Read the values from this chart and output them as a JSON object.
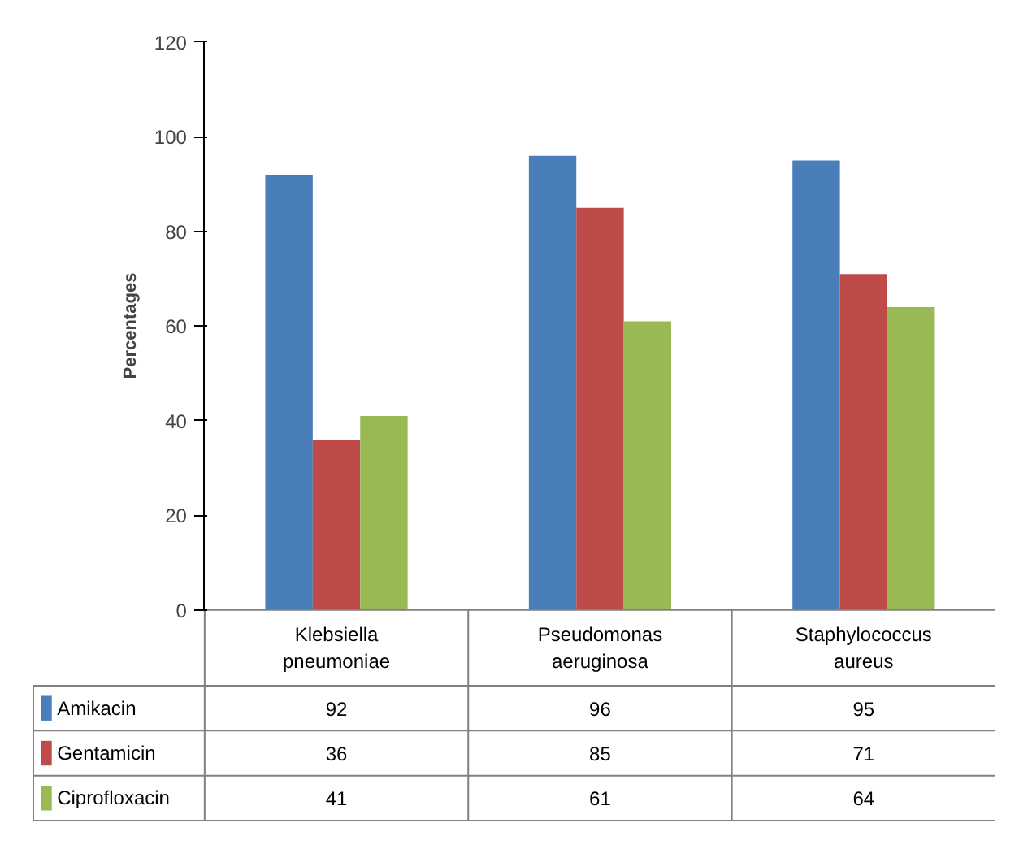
{
  "chart_data": {
    "type": "bar",
    "ylabel": "Percentages",
    "categories": [
      "Klebsiella pneumoniae",
      "Pseudomonas aeruginosa",
      "Staphylococcus aureus"
    ],
    "series": [
      {
        "name": "Amikacin",
        "color": "#4a7ebb",
        "values": [
          92,
          96,
          95
        ]
      },
      {
        "name": "Gentamicin",
        "color": "#be4b48",
        "values": [
          36,
          85,
          71
        ]
      },
      {
        "name": "Ciprofloxacin",
        "color": "#98b954",
        "values": [
          41,
          61,
          64
        ]
      }
    ],
    "ylim": [
      0,
      120
    ],
    "yticks": [
      0,
      20,
      40,
      60,
      80,
      100,
      120
    ],
    "grid": false,
    "legend": "bottom",
    "data_labels": true
  }
}
